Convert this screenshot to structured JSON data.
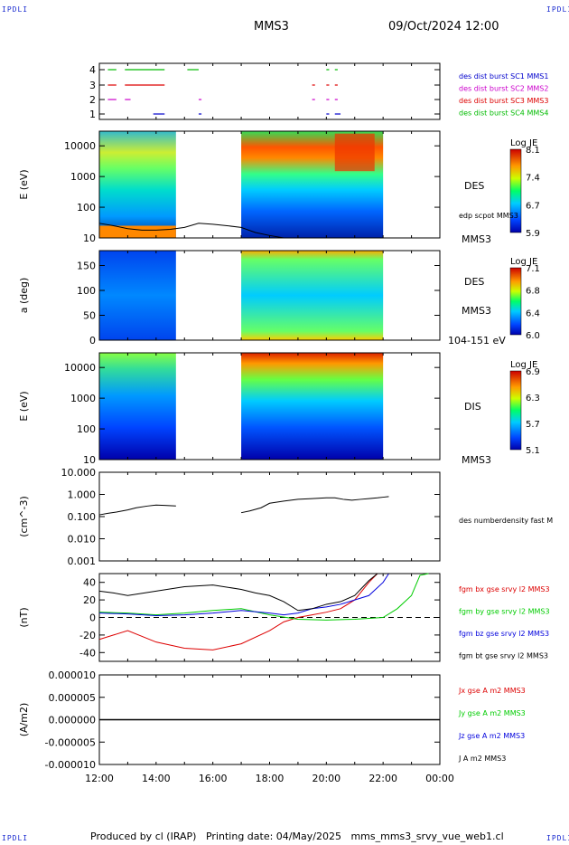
{
  "header": {
    "corner_labels": [
      "IPDLI",
      "IPDLI",
      "IPDLI",
      "IPDLI"
    ],
    "spacecraft": "MMS3",
    "datetime": "09/Oct/2024 12:00"
  },
  "footer": {
    "produced_by": "Produced by cl (IRAP)",
    "printing_date": "Printing date: 04/May/2025",
    "product": "mms_mms3_srvy_vue_web1.cl"
  },
  "colors": {
    "mms1": "#0000cc",
    "mms2": "#cc00cc",
    "mms3": "#dd0000",
    "mms4": "#00bb00",
    "bx": "#dd0000",
    "by": "#00cc00",
    "bz": "#0000dd",
    "bt": "#000000"
  },
  "chart_data": [
    {
      "type": "timeline",
      "yticks": [
        "1",
        "2",
        "3",
        "4"
      ],
      "legend": [
        "des dist burst SC1 MMS1",
        "des dist burst SC2 MMS2",
        "des dist burst SC3 MMS3",
        "des dist burst SC4 MMS4"
      ],
      "x_range": [
        "12:00",
        "00:00"
      ],
      "intervals_hours": {
        "4": [
          [
            12.3,
            12.6
          ],
          [
            12.9,
            14.3
          ],
          [
            15.1,
            15.5
          ],
          [
            20.0,
            20.1
          ],
          [
            20.3,
            20.4
          ]
        ],
        "3": [
          [
            12.3,
            12.6
          ],
          [
            12.9,
            14.3
          ],
          [
            19.5,
            19.6
          ],
          [
            20.0,
            20.1
          ],
          [
            20.3,
            20.4
          ]
        ],
        "2": [
          [
            12.3,
            12.6
          ],
          [
            12.9,
            13.1
          ],
          [
            15.5,
            15.6
          ],
          [
            19.5,
            19.6
          ],
          [
            20.0,
            20.1
          ],
          [
            20.3,
            20.4
          ]
        ],
        "1": [
          [
            13.9,
            14.3
          ],
          [
            15.5,
            15.6
          ],
          [
            20.0,
            20.1
          ],
          [
            20.3,
            20.5
          ]
        ]
      }
    },
    {
      "type": "heatmap",
      "ylabel": "E (eV)",
      "yscale": "log",
      "yticks": [
        "10",
        "100",
        "1000",
        "10000"
      ],
      "ylim": [
        10,
        30000
      ],
      "right_labels": [
        "DES",
        "edp scpot MMS3",
        "MMS3"
      ],
      "colorbar": {
        "label": "Log JE",
        "ticks": [
          "8.1",
          "7.4",
          "6.7",
          "5.9"
        ]
      },
      "gaps_hours": [
        [
          14.7,
          17.0
        ],
        [
          22.0,
          24.0
        ]
      ]
    },
    {
      "type": "heatmap",
      "ylabel": "a (deg)",
      "yticks": [
        "0",
        "50",
        "100",
        "150"
      ],
      "ylim": [
        0,
        180
      ],
      "right_labels": [
        "DES",
        "MMS3",
        "104-151 eV"
      ],
      "colorbar": {
        "label": "Log JE",
        "ticks": [
          "7.1",
          "6.8",
          "6.4",
          "6.0"
        ]
      },
      "gaps_hours": [
        [
          14.7,
          17.0
        ],
        [
          22.0,
          24.0
        ]
      ]
    },
    {
      "type": "heatmap",
      "ylabel": "E (eV)",
      "yscale": "log",
      "yticks": [
        "10",
        "100",
        "1000",
        "10000"
      ],
      "ylim": [
        10,
        30000
      ],
      "right_labels": [
        "DIS",
        "MMS3"
      ],
      "colorbar": {
        "label": "Log JE",
        "ticks": [
          "6.9",
          "6.3",
          "5.7",
          "5.1"
        ]
      },
      "gaps_hours": [
        [
          14.7,
          17.0
        ],
        [
          22.0,
          24.0
        ]
      ]
    },
    {
      "type": "line",
      "ylabel": "(cm^-3)",
      "yscale": "log",
      "yticks": [
        "0.001",
        "0.010",
        "0.100",
        "1.000",
        "10.000"
      ],
      "ylim": [
        0.001,
        10
      ],
      "series": [
        {
          "name": "des numberdensity fast M",
          "x": [
            12.0,
            12.3,
            12.6,
            13.0,
            13.3,
            13.7,
            14.0,
            14.3,
            14.7,
            17.0,
            17.3,
            17.7,
            18.0,
            18.5,
            19.0,
            19.5,
            20.0,
            20.3,
            20.6,
            20.9,
            21.2,
            21.5,
            21.8,
            22.0,
            22.2
          ],
          "y": [
            0.12,
            0.14,
            0.16,
            0.2,
            0.25,
            0.3,
            0.33,
            0.32,
            0.3,
            0.15,
            0.18,
            0.25,
            0.4,
            0.5,
            0.6,
            0.65,
            0.7,
            0.7,
            0.6,
            0.55,
            0.6,
            0.65,
            0.7,
            0.75,
            0.8
          ]
        }
      ]
    },
    {
      "type": "line",
      "ylabel": "(nT)",
      "yticks": [
        "-40",
        "-20",
        "0",
        "20",
        "40"
      ],
      "ylim": [
        -50,
        50
      ],
      "series": [
        {
          "name": "fgm bx gse srvy l2 MMS3",
          "x": [
            12.0,
            12.5,
            13.0,
            14.0,
            15.0,
            16.0,
            17.0,
            18.0,
            18.5,
            19.0,
            19.5,
            20.0,
            20.5,
            21.0,
            21.5,
            21.8,
            22.0,
            22.2
          ],
          "y": [
            -25,
            -20,
            -15,
            -28,
            -35,
            -37,
            -30,
            -15,
            -5,
            0,
            3,
            6,
            10,
            20,
            40,
            50,
            52,
            50
          ]
        },
        {
          "name": "fgm by gse srvy l2 MMS3",
          "x": [
            12.0,
            13.0,
            14.0,
            15.0,
            16.0,
            17.0,
            18.0,
            19.0,
            20.0,
            21.0,
            22.0,
            22.5,
            23.0,
            23.3,
            23.6
          ],
          "y": [
            6,
            5,
            3,
            5,
            8,
            10,
            3,
            -2,
            -3,
            -2,
            0,
            10,
            25,
            48,
            60
          ]
        },
        {
          "name": "fgm bz gse srvy l2 MMS3",
          "x": [
            12.0,
            13.0,
            14.0,
            15.0,
            16.0,
            17.0,
            18.0,
            18.5,
            19.0,
            19.5,
            20.0,
            20.5,
            21.0,
            21.5,
            22.0,
            22.2
          ],
          "y": [
            5,
            4,
            2,
            3,
            5,
            8,
            5,
            3,
            5,
            10,
            12,
            15,
            20,
            25,
            40,
            50
          ]
        },
        {
          "name": "fgm bt gse srvy l2 MMS3",
          "x": [
            12.0,
            12.5,
            13.0,
            14.0,
            15.0,
            16.0,
            17.0,
            17.5,
            18.0,
            18.5,
            19.0,
            19.5,
            20.0,
            20.5,
            21.0,
            21.5,
            21.8,
            22.0,
            22.2
          ],
          "y": [
            30,
            28,
            25,
            30,
            35,
            37,
            32,
            28,
            25,
            18,
            8,
            10,
            15,
            18,
            25,
            42,
            50,
            52,
            50
          ]
        }
      ],
      "zero_line": true
    },
    {
      "type": "line",
      "ylabel": "(A/m2)",
      "yticks": [
        "-0.000010",
        "-0.000005",
        "0.000000",
        "0.000005",
        "0.000010"
      ],
      "ylim": [
        -1e-05,
        1e-05
      ],
      "series": [
        {
          "name": "Jx gse A m2 MMS3"
        },
        {
          "name": "Jy gse A m2 MMS3"
        },
        {
          "name": "Jz gse A m2 MMS3"
        },
        {
          "name": "J A m2 MMS3"
        }
      ]
    }
  ],
  "x_axis": {
    "ticks": [
      "12:00",
      "14:00",
      "16:00",
      "18:00",
      "20:00",
      "22:00",
      "00:00"
    ]
  }
}
